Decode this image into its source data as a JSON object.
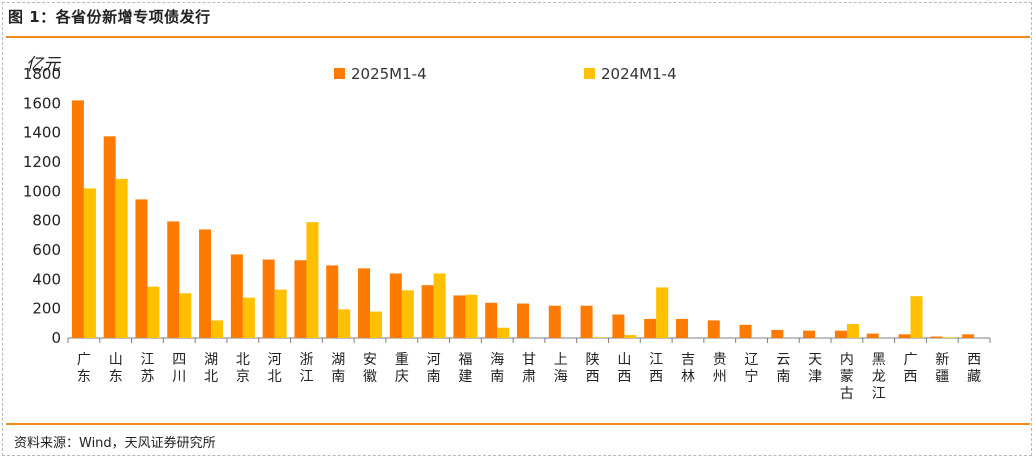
{
  "header": {
    "title": "图 1：各省份新增专项债发行"
  },
  "footer": {
    "source": "资料来源：Wind，天风证券研究所"
  },
  "colors": {
    "series_2025": "#ff7a00",
    "series_2024": "#ffc000",
    "accent_line": "#f08a1c"
  },
  "chart_data": {
    "type": "bar",
    "ylabel": "亿元",
    "ylim": [
      0,
      1800
    ],
    "yticks": [
      0,
      200,
      400,
      600,
      800,
      1000,
      1200,
      1400,
      1600,
      1800
    ],
    "legend_position": "top-center",
    "grid": false,
    "categories": [
      "广东",
      "山东",
      "江苏",
      "四川",
      "湖北",
      "北京",
      "河北",
      "浙江",
      "湖南",
      "安徽",
      "重庆",
      "河南",
      "福建",
      "海南",
      "甘肃",
      "上海",
      "陕西",
      "山西",
      "江西",
      "吉林",
      "贵州",
      "辽宁",
      "云南",
      "天津",
      "内蒙古",
      "黑龙江",
      "广西",
      "新疆",
      "西藏"
    ],
    "series": [
      {
        "name": "2025M1-4",
        "values": [
          1620,
          1375,
          945,
          795,
          740,
          570,
          535,
          530,
          495,
          475,
          440,
          360,
          290,
          240,
          235,
          220,
          220,
          160,
          130,
          130,
          120,
          90,
          55,
          50,
          50,
          30,
          25,
          10,
          25
        ]
      },
      {
        "name": "2024M1-4",
        "values": [
          1020,
          1085,
          350,
          305,
          120,
          275,
          330,
          790,
          195,
          180,
          325,
          440,
          295,
          70,
          0,
          0,
          5,
          20,
          345,
          0,
          0,
          0,
          0,
          0,
          95,
          0,
          285,
          5,
          0
        ]
      }
    ]
  }
}
